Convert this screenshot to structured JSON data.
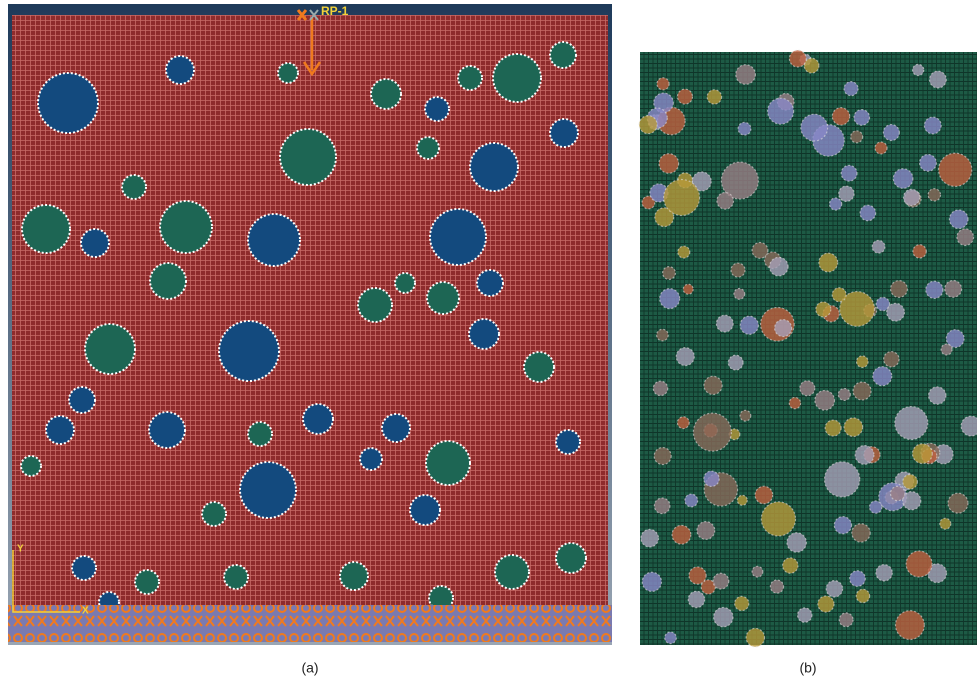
{
  "panels": [
    {
      "label": "(a)",
      "reference_point": "RP-1",
      "axis_labels": [
        "Y",
        "X"
      ]
    },
    {
      "label": "(b)"
    }
  ]
}
